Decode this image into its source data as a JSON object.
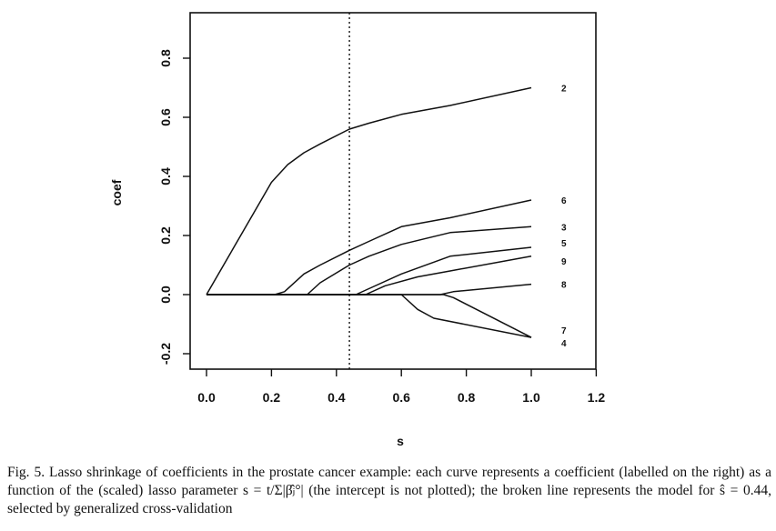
{
  "chart_data": {
    "type": "line",
    "xlabel": "s",
    "ylabel": "coef",
    "xlim": [
      -0.05,
      1.2
    ],
    "ylim": [
      -0.25,
      0.95
    ],
    "x_ticks": [
      "0.0",
      "0.2",
      "0.4",
      "0.6",
      "0.8",
      "1.0",
      "1.2"
    ],
    "y_ticks": [
      "-0.2",
      "0.0",
      "0.2",
      "0.4",
      "0.6",
      "0.8"
    ],
    "vline": {
      "x": 0.44,
      "style": "dotted"
    },
    "grid": false,
    "series": [
      {
        "name": "2",
        "x": [
          0.0,
          0.2,
          0.25,
          0.3,
          0.35,
          0.44,
          0.5,
          0.6,
          0.75,
          1.0
        ],
        "values": [
          0.0,
          0.38,
          0.44,
          0.48,
          0.51,
          0.56,
          0.58,
          0.61,
          0.64,
          0.7
        ]
      },
      {
        "name": "6",
        "x": [
          0.0,
          0.21,
          0.24,
          0.3,
          0.35,
          0.44,
          0.5,
          0.6,
          0.75,
          1.0
        ],
        "values": [
          0.0,
          0.0,
          0.01,
          0.07,
          0.1,
          0.15,
          0.18,
          0.23,
          0.26,
          0.32
        ]
      },
      {
        "name": "3",
        "x": [
          0.0,
          0.31,
          0.35,
          0.44,
          0.5,
          0.6,
          0.75,
          1.0
        ],
        "values": [
          0.0,
          0.0,
          0.04,
          0.1,
          0.13,
          0.17,
          0.21,
          0.23
        ]
      },
      {
        "name": "5",
        "x": [
          0.0,
          0.46,
          0.5,
          0.6,
          0.75,
          1.0
        ],
        "values": [
          0.0,
          0.0,
          0.02,
          0.07,
          0.13,
          0.16
        ]
      },
      {
        "name": "9",
        "x": [
          0.0,
          0.49,
          0.55,
          0.65,
          0.75,
          1.0
        ],
        "values": [
          0.0,
          0.0,
          0.03,
          0.06,
          0.08,
          0.13
        ]
      },
      {
        "name": "8",
        "x": [
          0.0,
          0.72,
          0.76,
          1.0
        ],
        "values": [
          0.0,
          0.0,
          0.01,
          0.035
        ]
      },
      {
        "name": "7",
        "x": [
          0.0,
          0.6,
          0.65,
          0.7,
          1.0
        ],
        "values": [
          0.0,
          0.0,
          -0.05,
          -0.08,
          -0.145
        ]
      },
      {
        "name": "4",
        "x": [
          0.0,
          0.73,
          0.76,
          1.0
        ],
        "values": [
          0.0,
          0.0,
          -0.01,
          -0.145
        ]
      }
    ],
    "series_labels": [
      "2",
      "6",
      "3",
      "5",
      "9",
      "8",
      "7",
      "4"
    ]
  },
  "caption": {
    "line1": "Fig. 5.  Lasso shrinkage of coefficients in the prostate cancer example: each curve represents a",
    "line2": "coefficient (labelled on the right) as a function of the (scaled) lasso parameter s = t/Σ|β̂ⱼ°| (the intercept",
    "line3": "is not plotted); the broken line represents the model for ŝ = 0.44, selected by generalized cross-validation"
  }
}
